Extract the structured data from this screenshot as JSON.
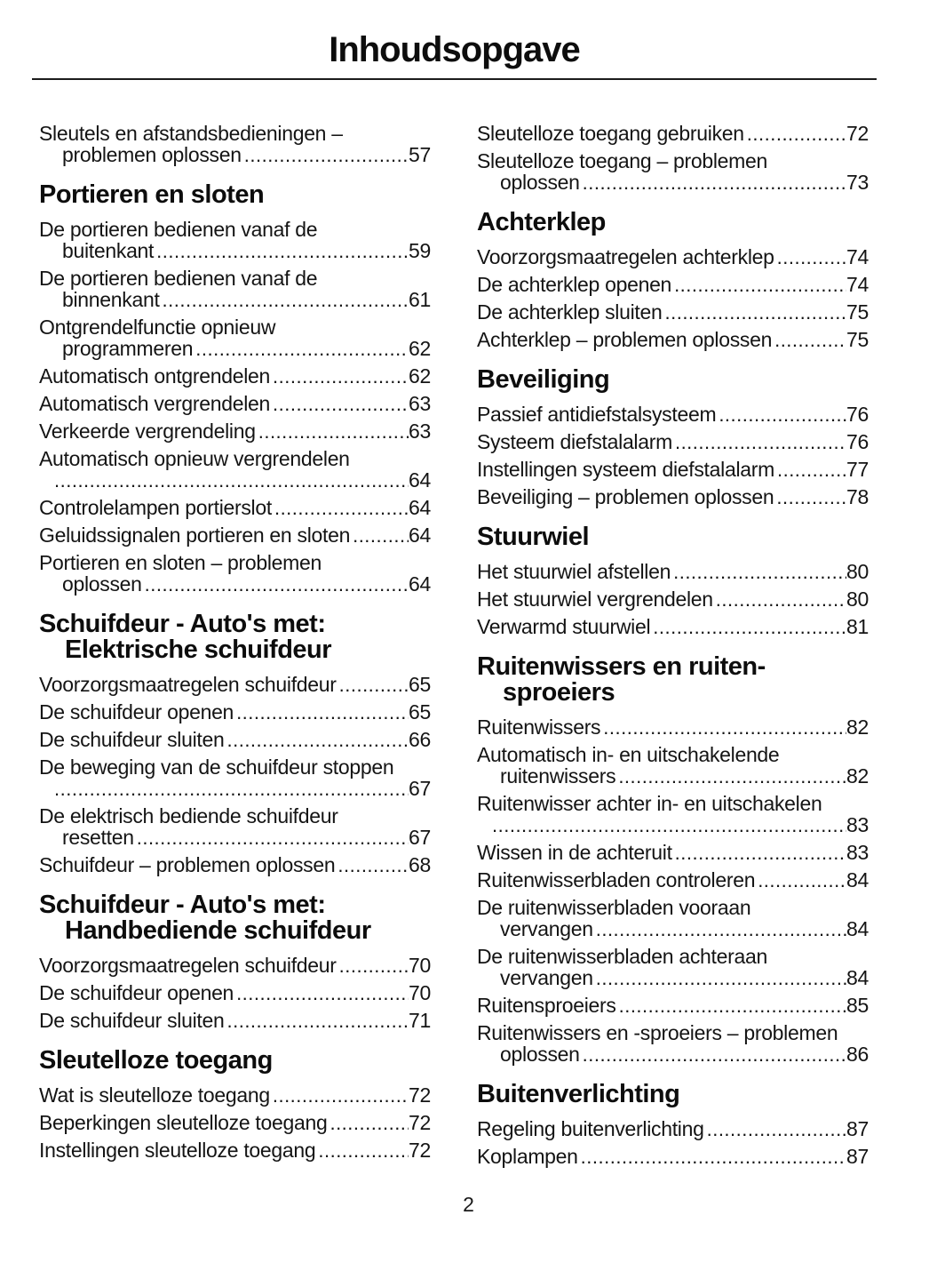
{
  "page": {
    "title": "Inhoudsopgave",
    "page_number": "2",
    "text_color": "#141414",
    "background_color": "#ffffff"
  },
  "toc": {
    "columns": [
      {
        "blocks": [
          {
            "heading": null,
            "entries": [
              {
                "lines": [
                  "Sleutels en afstandsbedieningen –",
                  "problemen oplossen"
                ],
                "page": "57"
              }
            ]
          },
          {
            "heading": [
              "Portieren en sloten"
            ],
            "entries": [
              {
                "lines": [
                  "De portieren bedienen vanaf de",
                  "buitenkant"
                ],
                "page": "59"
              },
              {
                "lines": [
                  "De portieren bedienen vanaf de",
                  "binnenkant"
                ],
                "page": "61"
              },
              {
                "lines": [
                  "Ontgrendelfunctie opnieuw",
                  "programmeren"
                ],
                "page": "62"
              },
              {
                "lines": [
                  "Automatisch ontgrendelen"
                ],
                "page": "62"
              },
              {
                "lines": [
                  "Automatisch vergrendelen"
                ],
                "page": "63"
              },
              {
                "lines": [
                  "Verkeerde vergrendeling"
                ],
                "page": "63"
              },
              {
                "lines": [
                  "Automatisch opnieuw vergrendelen",
                  ""
                ],
                "page": "64"
              },
              {
                "lines": [
                  "Controlelampen portierslot"
                ],
                "page": "64"
              },
              {
                "lines": [
                  "Geluidssignalen portieren en sloten"
                ],
                "page": "64"
              },
              {
                "lines": [
                  "Portieren en sloten – problemen",
                  "oplossen"
                ],
                "page": "64"
              }
            ]
          },
          {
            "heading": [
              "Schuifdeur - Auto's met:",
              "Elektrische schuifdeur"
            ],
            "entries": [
              {
                "lines": [
                  "Voorzorgsmaatregelen schuifdeur"
                ],
                "page": "65"
              },
              {
                "lines": [
                  "De schuifdeur openen"
                ],
                "page": "65"
              },
              {
                "lines": [
                  "De schuifdeur sluiten"
                ],
                "page": "66"
              },
              {
                "lines": [
                  "De beweging van de schuifdeur stoppen",
                  ""
                ],
                "page": "67"
              },
              {
                "lines": [
                  "De elektrisch bediende schuifdeur",
                  "resetten"
                ],
                "page": "67"
              },
              {
                "lines": [
                  "Schuifdeur – problemen oplossen"
                ],
                "page": "68"
              }
            ]
          },
          {
            "heading": [
              "Schuifdeur - Auto's met:",
              "Handbediende schuifdeur"
            ],
            "entries": [
              {
                "lines": [
                  "Voorzorgsmaatregelen schuifdeur"
                ],
                "page": "70"
              },
              {
                "lines": [
                  "De schuifdeur openen"
                ],
                "page": "70"
              },
              {
                "lines": [
                  "De schuifdeur sluiten"
                ],
                "page": "71"
              }
            ]
          },
          {
            "heading": [
              "Sleutelloze toegang"
            ],
            "entries": [
              {
                "lines": [
                  "Wat is sleutelloze toegang"
                ],
                "page": "72"
              },
              {
                "lines": [
                  "Beperkingen sleutelloze toegang"
                ],
                "page": "72"
              },
              {
                "lines": [
                  "Instellingen sleutelloze toegang"
                ],
                "page": "72"
              }
            ]
          }
        ]
      },
      {
        "blocks": [
          {
            "heading": null,
            "entries": [
              {
                "lines": [
                  "Sleutelloze toegang gebruiken"
                ],
                "page": "72"
              },
              {
                "lines": [
                  "Sleutelloze toegang – problemen",
                  "oplossen"
                ],
                "page": "73"
              }
            ]
          },
          {
            "heading": [
              "Achterklep"
            ],
            "entries": [
              {
                "lines": [
                  "Voorzorgsmaatregelen achterklep"
                ],
                "page": "74"
              },
              {
                "lines": [
                  "De achterklep openen"
                ],
                "page": "74"
              },
              {
                "lines": [
                  "De achterklep sluiten"
                ],
                "page": "75"
              },
              {
                "lines": [
                  "Achterklep – problemen oplossen"
                ],
                "page": "75"
              }
            ]
          },
          {
            "heading": [
              "Beveiliging"
            ],
            "entries": [
              {
                "lines": [
                  "Passief antidiefstalsysteem"
                ],
                "page": "76"
              },
              {
                "lines": [
                  "Systeem diefstalalarm"
                ],
                "page": "76"
              },
              {
                "lines": [
                  "Instellingen systeem diefstalalarm"
                ],
                "page": "77"
              },
              {
                "lines": [
                  "Beveiliging – problemen oplossen"
                ],
                "page": "78"
              }
            ]
          },
          {
            "heading": [
              "Stuurwiel"
            ],
            "entries": [
              {
                "lines": [
                  "Het stuurwiel afstellen"
                ],
                "page": "80"
              },
              {
                "lines": [
                  "Het stuurwiel vergrendelen"
                ],
                "page": "80"
              },
              {
                "lines": [
                  "Verwarmd stuurwiel"
                ],
                "page": "81"
              }
            ]
          },
          {
            "heading": [
              "Ruitenwissers en ruiten-",
              "sproeiers"
            ],
            "entries": [
              {
                "lines": [
                  "Ruitenwissers"
                ],
                "page": "82"
              },
              {
                "lines": [
                  "Automatisch in- en uitschakelende",
                  "ruitenwissers"
                ],
                "page": "82"
              },
              {
                "lines": [
                  "Ruitenwisser achter in- en uitschakelen",
                  ""
                ],
                "page": "83"
              },
              {
                "lines": [
                  "Wissen in de achteruit"
                ],
                "page": "83"
              },
              {
                "lines": [
                  "Ruitenwisserbladen controleren"
                ],
                "page": "84"
              },
              {
                "lines": [
                  "De ruitenwisserbladen vooraan",
                  "vervangen"
                ],
                "page": "84"
              },
              {
                "lines": [
                  "De ruitenwisserbladen achteraan",
                  "vervangen"
                ],
                "page": "84"
              },
              {
                "lines": [
                  "Ruitensproeiers"
                ],
                "page": "85"
              },
              {
                "lines": [
                  "Ruitenwissers en -sproeiers – problemen",
                  "oplossen"
                ],
                "page": "86"
              }
            ]
          },
          {
            "heading": [
              "Buitenverlichting"
            ],
            "entries": [
              {
                "lines": [
                  "Regeling buitenverlichting"
                ],
                "page": "87"
              },
              {
                "lines": [
                  "Koplampen"
                ],
                "page": "87"
              }
            ]
          }
        ]
      }
    ]
  }
}
